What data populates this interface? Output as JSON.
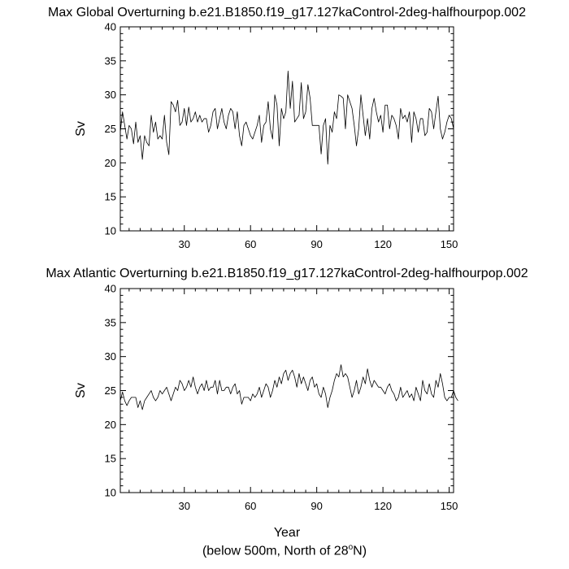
{
  "chart_data": [
    {
      "type": "line",
      "title": "Max Global Overturning b.e21.B1850.f19_g17.127kaControl-2deg-halfhourpop.002",
      "xlabel": "",
      "ylabel": "Sv",
      "xlim": [
        1,
        152
      ],
      "ylim": [
        10,
        40
      ],
      "xticks": [
        30,
        60,
        90,
        120,
        150
      ],
      "yticks": [
        10,
        15,
        20,
        25,
        30,
        35,
        40
      ],
      "grid": false,
      "series": [
        {
          "values": [
            24.5,
            27.5,
            25.5,
            23.5,
            25.5,
            25.0,
            22.8,
            26.0,
            23.0,
            24.0,
            20.5,
            24.0,
            23.0,
            22.5,
            27.0,
            24.5,
            26.0,
            23.5,
            24.0,
            23.5,
            27.0,
            23.0,
            21.2,
            29.0,
            28.5,
            27.5,
            29.2,
            25.5,
            26.0,
            28.0,
            25.5,
            28.2,
            26.0,
            26.5,
            27.5,
            26.0,
            27.0,
            26.0,
            26.5,
            26.5,
            24.5,
            25.5,
            27.5,
            28.0,
            25.0,
            26.5,
            28.0,
            26.0,
            25.0,
            27.0,
            28.0,
            27.5,
            25.0,
            27.5,
            24.0,
            22.5,
            25.5,
            26.0,
            25.0,
            24.0,
            23.5,
            24.5,
            25.5,
            27.0,
            23.0,
            25.5,
            26.0,
            29.0,
            25.0,
            23.5,
            30.0,
            28.5,
            22.5,
            28.0,
            26.5,
            27.5,
            33.5,
            28.0,
            32.0,
            26.0,
            26.5,
            27.0,
            31.8,
            26.5,
            27.5,
            31.5,
            29.5,
            25.5,
            25.5,
            25.5,
            25.5,
            21.3,
            25.5,
            26.5,
            19.8,
            25.5,
            24.5,
            27.5,
            26.5,
            30.0,
            29.8,
            29.5,
            25.0,
            30.0,
            29.0,
            28.0,
            25.5,
            22.5,
            25.0,
            30.0,
            27.0,
            24.0,
            26.5,
            23.5,
            28.0,
            29.5,
            27.5,
            26.0,
            27.0,
            24.5,
            28.5,
            28.5,
            25.0,
            27.0,
            26.5,
            25.5,
            23.5,
            28.0,
            26.5,
            27.0,
            26.0,
            27.5,
            23.0,
            27.5,
            26.5,
            24.5,
            26.5,
            26.5,
            24.0,
            24.5,
            28.0,
            27.5,
            25.0,
            27.5,
            29.8,
            25.0,
            23.5,
            24.5,
            26.0,
            27.0,
            26.5,
            25.0
          ]
        }
      ]
    },
    {
      "type": "line",
      "title": "Max Atlantic Overturning b.e21.B1850.f19_g17.127kaControl-2deg-halfhourpop.002",
      "xlabel": "Year",
      "ylabel": "Sv",
      "xlim": [
        1,
        152
      ],
      "ylim": [
        10,
        40
      ],
      "xticks": [
        30,
        60,
        90,
        120,
        150
      ],
      "yticks": [
        10,
        15,
        20,
        25,
        30,
        35,
        40
      ],
      "grid": false,
      "series": [
        {
          "values": [
            23.5,
            24.8,
            23.5,
            22.8,
            23.5,
            24.0,
            24.0,
            24.0,
            22.5,
            23.5,
            22.2,
            23.5,
            24.0,
            24.5,
            25.0,
            24.0,
            23.5,
            24.0,
            25.0,
            24.5,
            25.0,
            25.5,
            24.5,
            23.5,
            24.5,
            25.5,
            25.0,
            26.5,
            26.0,
            25.0,
            25.5,
            26.5,
            25.5,
            27.0,
            25.5,
            24.5,
            25.5,
            26.0,
            25.0,
            26.5,
            25.0,
            25.5,
            25.5,
            26.5,
            24.5,
            26.5,
            25.0,
            25.0,
            25.5,
            25.5,
            24.5,
            25.5,
            26.0,
            24.5,
            25.0,
            23.0,
            24.0,
            24.0,
            24.0,
            23.5,
            24.5,
            24.0,
            24.5,
            25.5,
            24.0,
            25.0,
            26.0,
            25.5,
            24.0,
            25.0,
            26.5,
            25.5,
            27.0,
            26.0,
            27.5,
            28.0,
            26.5,
            27.5,
            28.0,
            27.0,
            25.5,
            27.5,
            26.0,
            27.0,
            26.0,
            25.0,
            26.5,
            27.0,
            25.5,
            26.0,
            24.5,
            24.0,
            25.5,
            24.5,
            22.5,
            24.0,
            25.0,
            26.5,
            27.5,
            27.0,
            28.8,
            27.0,
            27.5,
            27.0,
            25.5,
            24.0,
            25.0,
            26.5,
            24.5,
            25.5,
            27.0,
            26.0,
            28.2,
            26.5,
            25.5,
            26.5,
            26.0,
            25.5,
            25.5,
            25.0,
            24.5,
            25.5,
            26.0,
            25.0,
            24.5,
            23.5,
            24.0,
            25.5,
            24.0,
            24.5,
            25.0,
            24.0,
            24.5,
            23.5,
            25.5,
            24.5,
            23.5,
            26.5,
            25.0,
            24.5,
            26.0,
            24.5,
            24.0,
            26.5,
            25.5,
            27.5,
            26.0,
            24.0,
            23.5,
            24.0,
            24.0,
            25.0,
            24.0,
            23.5
          ]
        }
      ]
    }
  ],
  "caption": {
    "text": "(below 500m, North of 28",
    "degree_symbol": "o",
    "suffix": "N)"
  },
  "colors": {
    "line": "#000000",
    "axis": "#000000",
    "background": "#ffffff"
  }
}
